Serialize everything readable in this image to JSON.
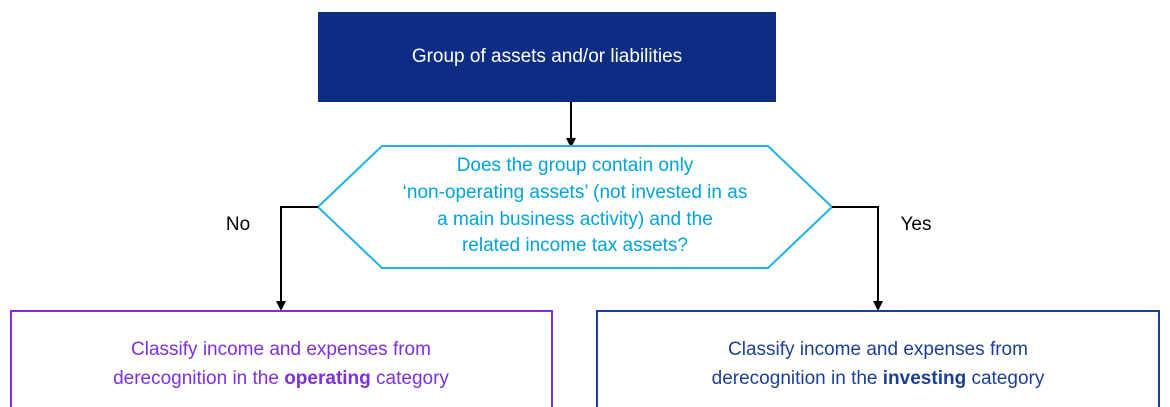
{
  "start": {
    "label": "Group of assets and/or liabilities"
  },
  "decision": {
    "lines": [
      "Does the group contain only",
      "‘non-operating assets’ (not invested in as",
      "a main business activity) and the",
      "related income tax assets?"
    ]
  },
  "branches": [
    {
      "label": "No",
      "outcome": {
        "line1": "Classify income and expenses from",
        "line2_before": "derecognition in the ",
        "emphasis": "operating",
        "line2_after": " category"
      }
    },
    {
      "label": "Yes",
      "outcome": {
        "line1": "Classify income and expenses from",
        "line2_before": "derecognition in the ",
        "emphasis": "investing",
        "line2_after": " category"
      }
    }
  ]
}
